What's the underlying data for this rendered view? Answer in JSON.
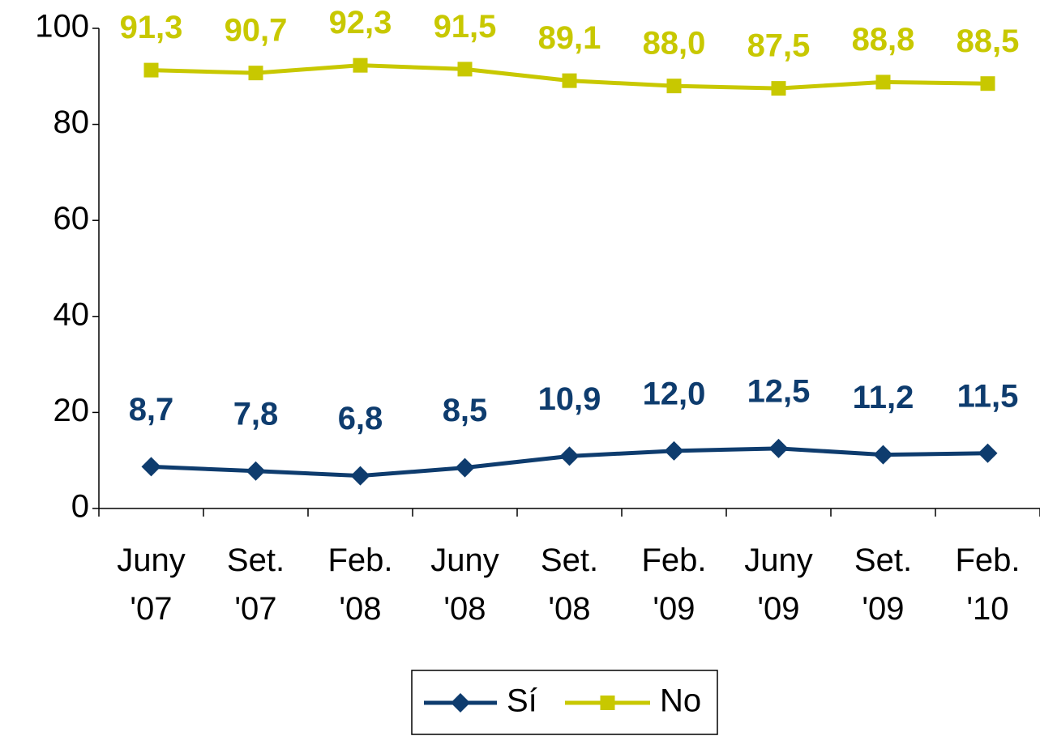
{
  "chart_data": {
    "type": "line",
    "categories": [
      "Juny '07",
      "Set. '07",
      "Feb. '08",
      "Juny '08",
      "Set. '08",
      "Feb. '09",
      "Juny '09",
      "Set. '09",
      "Feb. '10"
    ],
    "series": [
      {
        "name": "Sí",
        "color": "#0e3c6e",
        "marker": "diamond",
        "values": [
          8.7,
          7.8,
          6.8,
          8.5,
          10.9,
          12.0,
          12.5,
          11.2,
          11.5
        ],
        "value_labels": [
          "8,7",
          "7,8",
          "6,8",
          "8,5",
          "10,9",
          "12,0",
          "12,5",
          "11,2",
          "11,5"
        ]
      },
      {
        "name": "No",
        "color": "#c8c800",
        "marker": "square",
        "values": [
          91.3,
          90.7,
          92.3,
          91.5,
          89.1,
          88.0,
          87.5,
          88.8,
          88.5
        ],
        "value_labels": [
          "91,3",
          "90,7",
          "92,3",
          "91,5",
          "89,1",
          "88,0",
          "87,5",
          "88,8",
          "88,5"
        ]
      }
    ],
    "ylim": [
      0,
      100
    ],
    "yticks": [
      0,
      20,
      40,
      60,
      80,
      100
    ],
    "grid": false,
    "legend": "bottom"
  }
}
